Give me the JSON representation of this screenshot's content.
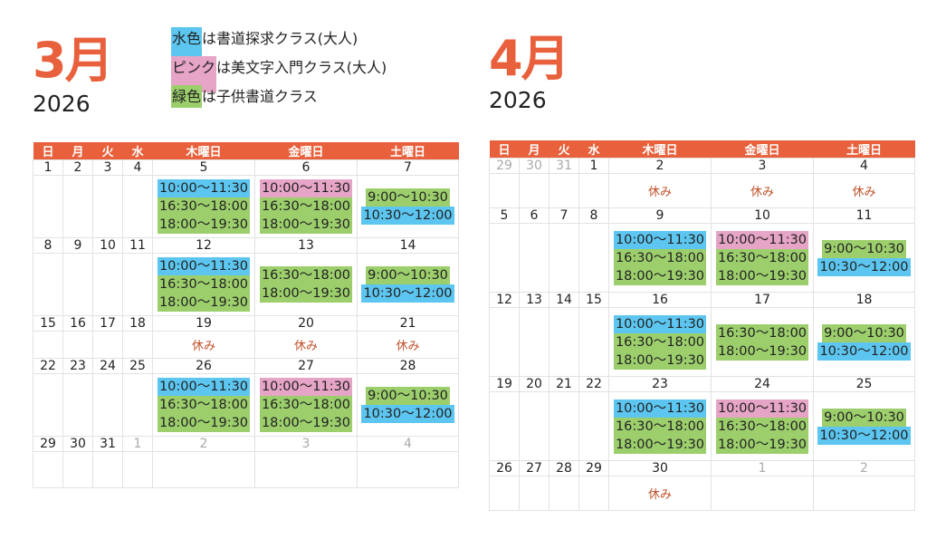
{
  "colors": {
    "blue": "#5cc6f0",
    "pink": "#e6a4c6",
    "green": "#9ccf6c",
    "accent": "#e8603c"
  },
  "legend": [
    {
      "swatch": "水色",
      "text": "は書道探求クラス(大人)",
      "color": "blue"
    },
    {
      "swatch": "ピンク",
      "text": "は美文字入門クラス(大人)",
      "color": "pink"
    },
    {
      "swatch": "緑色",
      "text": "は子供書道クラス",
      "color": "green"
    }
  ],
  "headers": [
    "日",
    "月",
    "火",
    "水",
    "木曜日",
    "金曜日",
    "土曜日"
  ],
  "months": [
    {
      "title": "3月",
      "year": "2026",
      "weeks": [
        {
          "days": [
            {
              "d": "1"
            },
            {
              "d": "2"
            },
            {
              "d": "3"
            },
            {
              "d": "4"
            },
            {
              "d": "5",
              "slots": [
                {
                  "time": "10:00〜11:30",
                  "color": "blue"
                },
                {
                  "time": "16:30〜18:00",
                  "color": "green"
                },
                {
                  "time": "18:00〜19:30",
                  "color": "green"
                }
              ]
            },
            {
              "d": "6",
              "slots": [
                {
                  "time": "10:00〜11:30",
                  "color": "pink"
                },
                {
                  "time": "16:30〜18:00",
                  "color": "green"
                },
                {
                  "time": "18:00〜19:30",
                  "color": "green"
                }
              ]
            },
            {
              "d": "7",
              "slots": [
                {
                  "time": "9:00〜10:30",
                  "color": "green"
                },
                {
                  "time": "10:30〜12:00",
                  "color": "blue"
                }
              ]
            }
          ]
        },
        {
          "days": [
            {
              "d": "8"
            },
            {
              "d": "9"
            },
            {
              "d": "10"
            },
            {
              "d": "11"
            },
            {
              "d": "12",
              "slots": [
                {
                  "time": "10:00〜11:30",
                  "color": "blue"
                },
                {
                  "time": "16:30〜18:00",
                  "color": "green"
                },
                {
                  "time": "18:00〜19:30",
                  "color": "green"
                }
              ]
            },
            {
              "d": "13",
              "slots": [
                {
                  "time": "16:30〜18:00",
                  "color": "green"
                },
                {
                  "time": "18:00〜19:30",
                  "color": "green"
                }
              ]
            },
            {
              "d": "14",
              "slots": [
                {
                  "time": "9:00〜10:30",
                  "color": "green"
                },
                {
                  "time": "10:30〜12:00",
                  "color": "blue"
                }
              ]
            }
          ]
        },
        {
          "days": [
            {
              "d": "15"
            },
            {
              "d": "16"
            },
            {
              "d": "17"
            },
            {
              "d": "18"
            },
            {
              "d": "19",
              "note": "休み"
            },
            {
              "d": "20",
              "note": "休み"
            },
            {
              "d": "21",
              "note": "休み"
            }
          ]
        },
        {
          "days": [
            {
              "d": "22"
            },
            {
              "d": "23"
            },
            {
              "d": "24"
            },
            {
              "d": "25"
            },
            {
              "d": "26",
              "slots": [
                {
                  "time": "10:00〜11:30",
                  "color": "blue"
                },
                {
                  "time": "16:30〜18:00",
                  "color": "green"
                },
                {
                  "time": "18:00〜19:30",
                  "color": "green"
                }
              ]
            },
            {
              "d": "27",
              "slots": [
                {
                  "time": "10:00〜11:30",
                  "color": "pink"
                },
                {
                  "time": "16:30〜18:00",
                  "color": "green"
                },
                {
                  "time": "18:00〜19:30",
                  "color": "green"
                }
              ]
            },
            {
              "d": "28",
              "slots": [
                {
                  "time": "9:00〜10:30",
                  "color": "green"
                },
                {
                  "time": "10:30〜12:00",
                  "color": "blue"
                }
              ]
            }
          ]
        },
        {
          "days": [
            {
              "d": "29"
            },
            {
              "d": "30"
            },
            {
              "d": "31"
            },
            {
              "d": "1",
              "muted": true
            },
            {
              "d": "2",
              "muted": true
            },
            {
              "d": "3",
              "muted": true
            },
            {
              "d": "4",
              "muted": true
            }
          ]
        }
      ]
    },
    {
      "title": "4月",
      "year": "2026",
      "weeks": [
        {
          "days": [
            {
              "d": "29",
              "muted": true
            },
            {
              "d": "30",
              "muted": true
            },
            {
              "d": "31",
              "muted": true
            },
            {
              "d": "1"
            },
            {
              "d": "2",
              "note": "休み"
            },
            {
              "d": "3",
              "note": "休み"
            },
            {
              "d": "4",
              "note": "休み"
            }
          ]
        },
        {
          "days": [
            {
              "d": "5"
            },
            {
              "d": "6"
            },
            {
              "d": "7"
            },
            {
              "d": "8"
            },
            {
              "d": "9",
              "slots": [
                {
                  "time": "10:00〜11:30",
                  "color": "blue"
                },
                {
                  "time": "16:30〜18:00",
                  "color": "green"
                },
                {
                  "time": "18:00〜19:30",
                  "color": "green"
                }
              ]
            },
            {
              "d": "10",
              "slots": [
                {
                  "time": "10:00〜11:30",
                  "color": "pink"
                },
                {
                  "time": "16:30〜18:00",
                  "color": "green"
                },
                {
                  "time": "18:00〜19:30",
                  "color": "green"
                }
              ]
            },
            {
              "d": "11",
              "slots": [
                {
                  "time": "9:00〜10:30",
                  "color": "green"
                },
                {
                  "time": "10:30〜12:00",
                  "color": "blue"
                }
              ]
            }
          ]
        },
        {
          "days": [
            {
              "d": "12"
            },
            {
              "d": "13"
            },
            {
              "d": "14"
            },
            {
              "d": "15"
            },
            {
              "d": "16",
              "slots": [
                {
                  "time": "10:00〜11:30",
                  "color": "blue"
                },
                {
                  "time": "16:30〜18:00",
                  "color": "green"
                },
                {
                  "time": "18:00〜19:30",
                  "color": "green"
                }
              ]
            },
            {
              "d": "17",
              "slots": [
                {
                  "time": "16:30〜18:00",
                  "color": "green"
                },
                {
                  "time": "18:00〜19:30",
                  "color": "green"
                }
              ]
            },
            {
              "d": "18",
              "slots": [
                {
                  "time": "9:00〜10:30",
                  "color": "green"
                },
                {
                  "time": "10:30〜12:00",
                  "color": "blue"
                }
              ]
            }
          ]
        },
        {
          "days": [
            {
              "d": "19"
            },
            {
              "d": "20"
            },
            {
              "d": "21"
            },
            {
              "d": "22"
            },
            {
              "d": "23",
              "slots": [
                {
                  "time": "10:00〜11:30",
                  "color": "blue"
                },
                {
                  "time": "16:30〜18:00",
                  "color": "green"
                },
                {
                  "time": "18:00〜19:30",
                  "color": "green"
                }
              ]
            },
            {
              "d": "24",
              "slots": [
                {
                  "time": "10:00〜11:30",
                  "color": "pink"
                },
                {
                  "time": "16:30〜18:00",
                  "color": "green"
                },
                {
                  "time": "18:00〜19:30",
                  "color": "green"
                }
              ]
            },
            {
              "d": "25",
              "slots": [
                {
                  "time": "9:00〜10:30",
                  "color": "green"
                },
                {
                  "time": "10:30〜12:00",
                  "color": "blue"
                }
              ]
            }
          ]
        },
        {
          "days": [
            {
              "d": "26"
            },
            {
              "d": "27"
            },
            {
              "d": "28"
            },
            {
              "d": "29"
            },
            {
              "d": "30",
              "note": "休み"
            },
            {
              "d": "1",
              "muted": true
            },
            {
              "d": "2",
              "muted": true
            }
          ]
        }
      ]
    }
  ]
}
